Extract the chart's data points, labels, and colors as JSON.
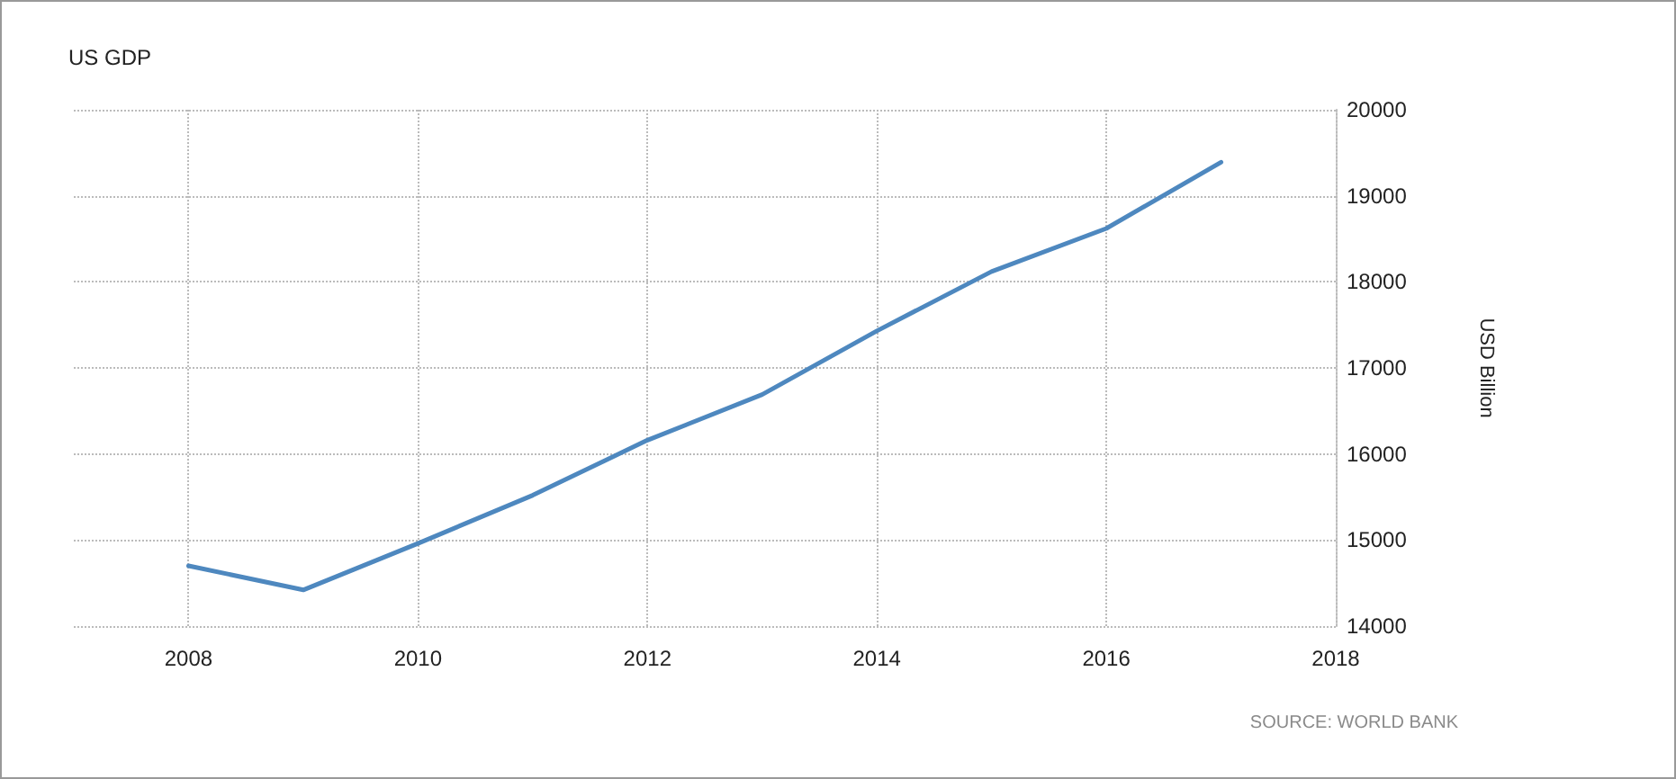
{
  "chart_data": {
    "type": "line",
    "title": "US GDP",
    "ylabel": "USD Billion",
    "annotations": [
      "SOURCE: WORLD BANK"
    ],
    "x": [
      2008,
      2009,
      2010,
      2011,
      2012,
      2013,
      2014,
      2015,
      2016,
      2017
    ],
    "series": [
      {
        "color": "#4e88bf",
        "values": [
          14700,
          14420,
          14960,
          15520,
          16160,
          16690,
          17430,
          18120,
          18620,
          19390
        ]
      }
    ],
    "xlim": [
      2007,
      2018
    ],
    "xticks": [
      2008,
      2010,
      2012,
      2014,
      2016,
      2018
    ],
    "ylim": [
      14000,
      20000
    ],
    "yticks": [
      14000,
      15000,
      16000,
      17000,
      18000,
      19000,
      20000
    ],
    "grid": true,
    "marker": "none",
    "line_style": "solid"
  }
}
